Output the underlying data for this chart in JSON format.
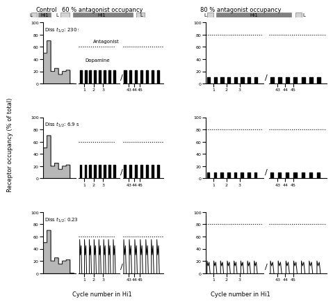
{
  "title_left": "Control   60 % antagonist occupancy",
  "title_right": "80 % antagonist occupancy",
  "col_headers_left": [
    "Control",
    "60 % antagonist occupancy"
  ],
  "col_headers_right": [
    "80 % antagonist occupancy"
  ],
  "row_labels": [
    "Diss t_{1/2}: 230 s",
    "Diss t_{1/2}: 6.9 s",
    "Diss t_{1/2}: 0.23 s"
  ],
  "ylabel": "Receptor occupancy (% of total)",
  "xlabel": "Cycle number in Hi1",
  "antagonist_level_60": 60,
  "antagonist_level_80": 80,
  "background_color": "#ffffff",
  "line_color": "#000000",
  "fill_color": "#aaaaaa",
  "dashed_color": "#000000"
}
